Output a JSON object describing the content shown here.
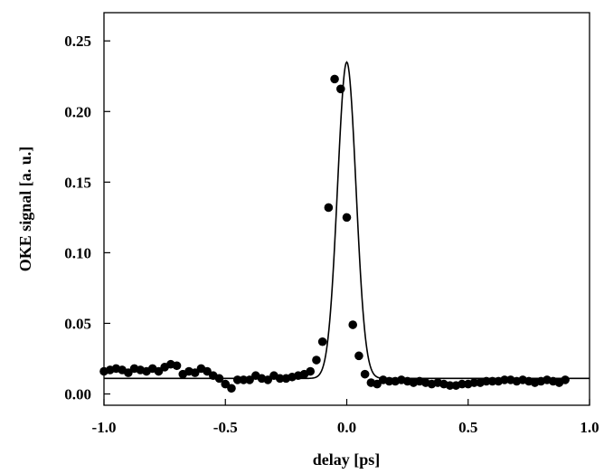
{
  "chart_data": {
    "type": "scatter",
    "xlabel": "delay [ps]",
    "ylabel": "OKE signal [a. u.]",
    "xlim": [
      -1.0,
      1.0
    ],
    "ylim": [
      -0.008,
      0.27
    ],
    "xticks": [
      -1.0,
      -0.5,
      0.0,
      0.5,
      1.0
    ],
    "xtick_labels": [
      "-1.0",
      "-0.5",
      "0.0",
      "0.5",
      "1.0"
    ],
    "yticks": [
      0.0,
      0.05,
      0.1,
      0.15,
      0.2,
      0.25
    ],
    "ytick_labels": [
      "0.00",
      "0.05",
      "0.10",
      "0.15",
      "0.20",
      "0.25"
    ],
    "grid": false,
    "legend": "none",
    "series": [
      {
        "kind": "markers",
        "color": "#000000",
        "points": [
          [
            -1.0,
            0.016
          ],
          [
            -0.975,
            0.017
          ],
          [
            -0.95,
            0.018
          ],
          [
            -0.925,
            0.017
          ],
          [
            -0.9,
            0.015
          ],
          [
            -0.875,
            0.018
          ],
          [
            -0.85,
            0.017
          ],
          [
            -0.825,
            0.016
          ],
          [
            -0.8,
            0.018
          ],
          [
            -0.775,
            0.016
          ],
          [
            -0.75,
            0.019
          ],
          [
            -0.725,
            0.021
          ],
          [
            -0.7,
            0.02
          ],
          [
            -0.675,
            0.014
          ],
          [
            -0.65,
            0.016
          ],
          [
            -0.625,
            0.015
          ],
          [
            -0.6,
            0.018
          ],
          [
            -0.575,
            0.016
          ],
          [
            -0.55,
            0.013
          ],
          [
            -0.525,
            0.011
          ],
          [
            -0.5,
            0.007
          ],
          [
            -0.475,
            0.004
          ],
          [
            -0.45,
            0.01
          ],
          [
            -0.425,
            0.01
          ],
          [
            -0.4,
            0.01
          ],
          [
            -0.375,
            0.013
          ],
          [
            -0.35,
            0.011
          ],
          [
            -0.325,
            0.01
          ],
          [
            -0.3,
            0.013
          ],
          [
            -0.275,
            0.011
          ],
          [
            -0.25,
            0.011
          ],
          [
            -0.225,
            0.012
          ],
          [
            -0.2,
            0.013
          ],
          [
            -0.175,
            0.014
          ],
          [
            -0.15,
            0.016
          ],
          [
            -0.125,
            0.024
          ],
          [
            -0.1,
            0.037
          ],
          [
            -0.075,
            0.132
          ],
          [
            -0.05,
            0.223
          ],
          [
            -0.025,
            0.216
          ],
          [
            0.0,
            0.125
          ],
          [
            0.025,
            0.049
          ],
          [
            0.05,
            0.027
          ],
          [
            0.075,
            0.014
          ],
          [
            0.1,
            0.008
          ],
          [
            0.125,
            0.007
          ],
          [
            0.15,
            0.01
          ],
          [
            0.175,
            0.009
          ],
          [
            0.2,
            0.009
          ],
          [
            0.225,
            0.01
          ],
          [
            0.25,
            0.009
          ],
          [
            0.275,
            0.008
          ],
          [
            0.3,
            0.009
          ],
          [
            0.325,
            0.008
          ],
          [
            0.35,
            0.007
          ],
          [
            0.375,
            0.008
          ],
          [
            0.4,
            0.007
          ],
          [
            0.425,
            0.006
          ],
          [
            0.45,
            0.006
          ],
          [
            0.475,
            0.007
          ],
          [
            0.5,
            0.007
          ],
          [
            0.525,
            0.008
          ],
          [
            0.55,
            0.008
          ],
          [
            0.575,
            0.009
          ],
          [
            0.6,
            0.009
          ],
          [
            0.625,
            0.009
          ],
          [
            0.65,
            0.01
          ],
          [
            0.675,
            0.01
          ],
          [
            0.7,
            0.009
          ],
          [
            0.725,
            0.01
          ],
          [
            0.75,
            0.009
          ],
          [
            0.775,
            0.008
          ],
          [
            0.8,
            0.009
          ],
          [
            0.825,
            0.01
          ],
          [
            0.85,
            0.009
          ],
          [
            0.875,
            0.008
          ],
          [
            0.9,
            0.01
          ]
        ]
      },
      {
        "kind": "fit-line",
        "color": "#000000",
        "gaussian": {
          "baseline": 0.011,
          "amplitude": 0.224,
          "center": 0.0,
          "sigma": 0.038
        }
      }
    ]
  }
}
